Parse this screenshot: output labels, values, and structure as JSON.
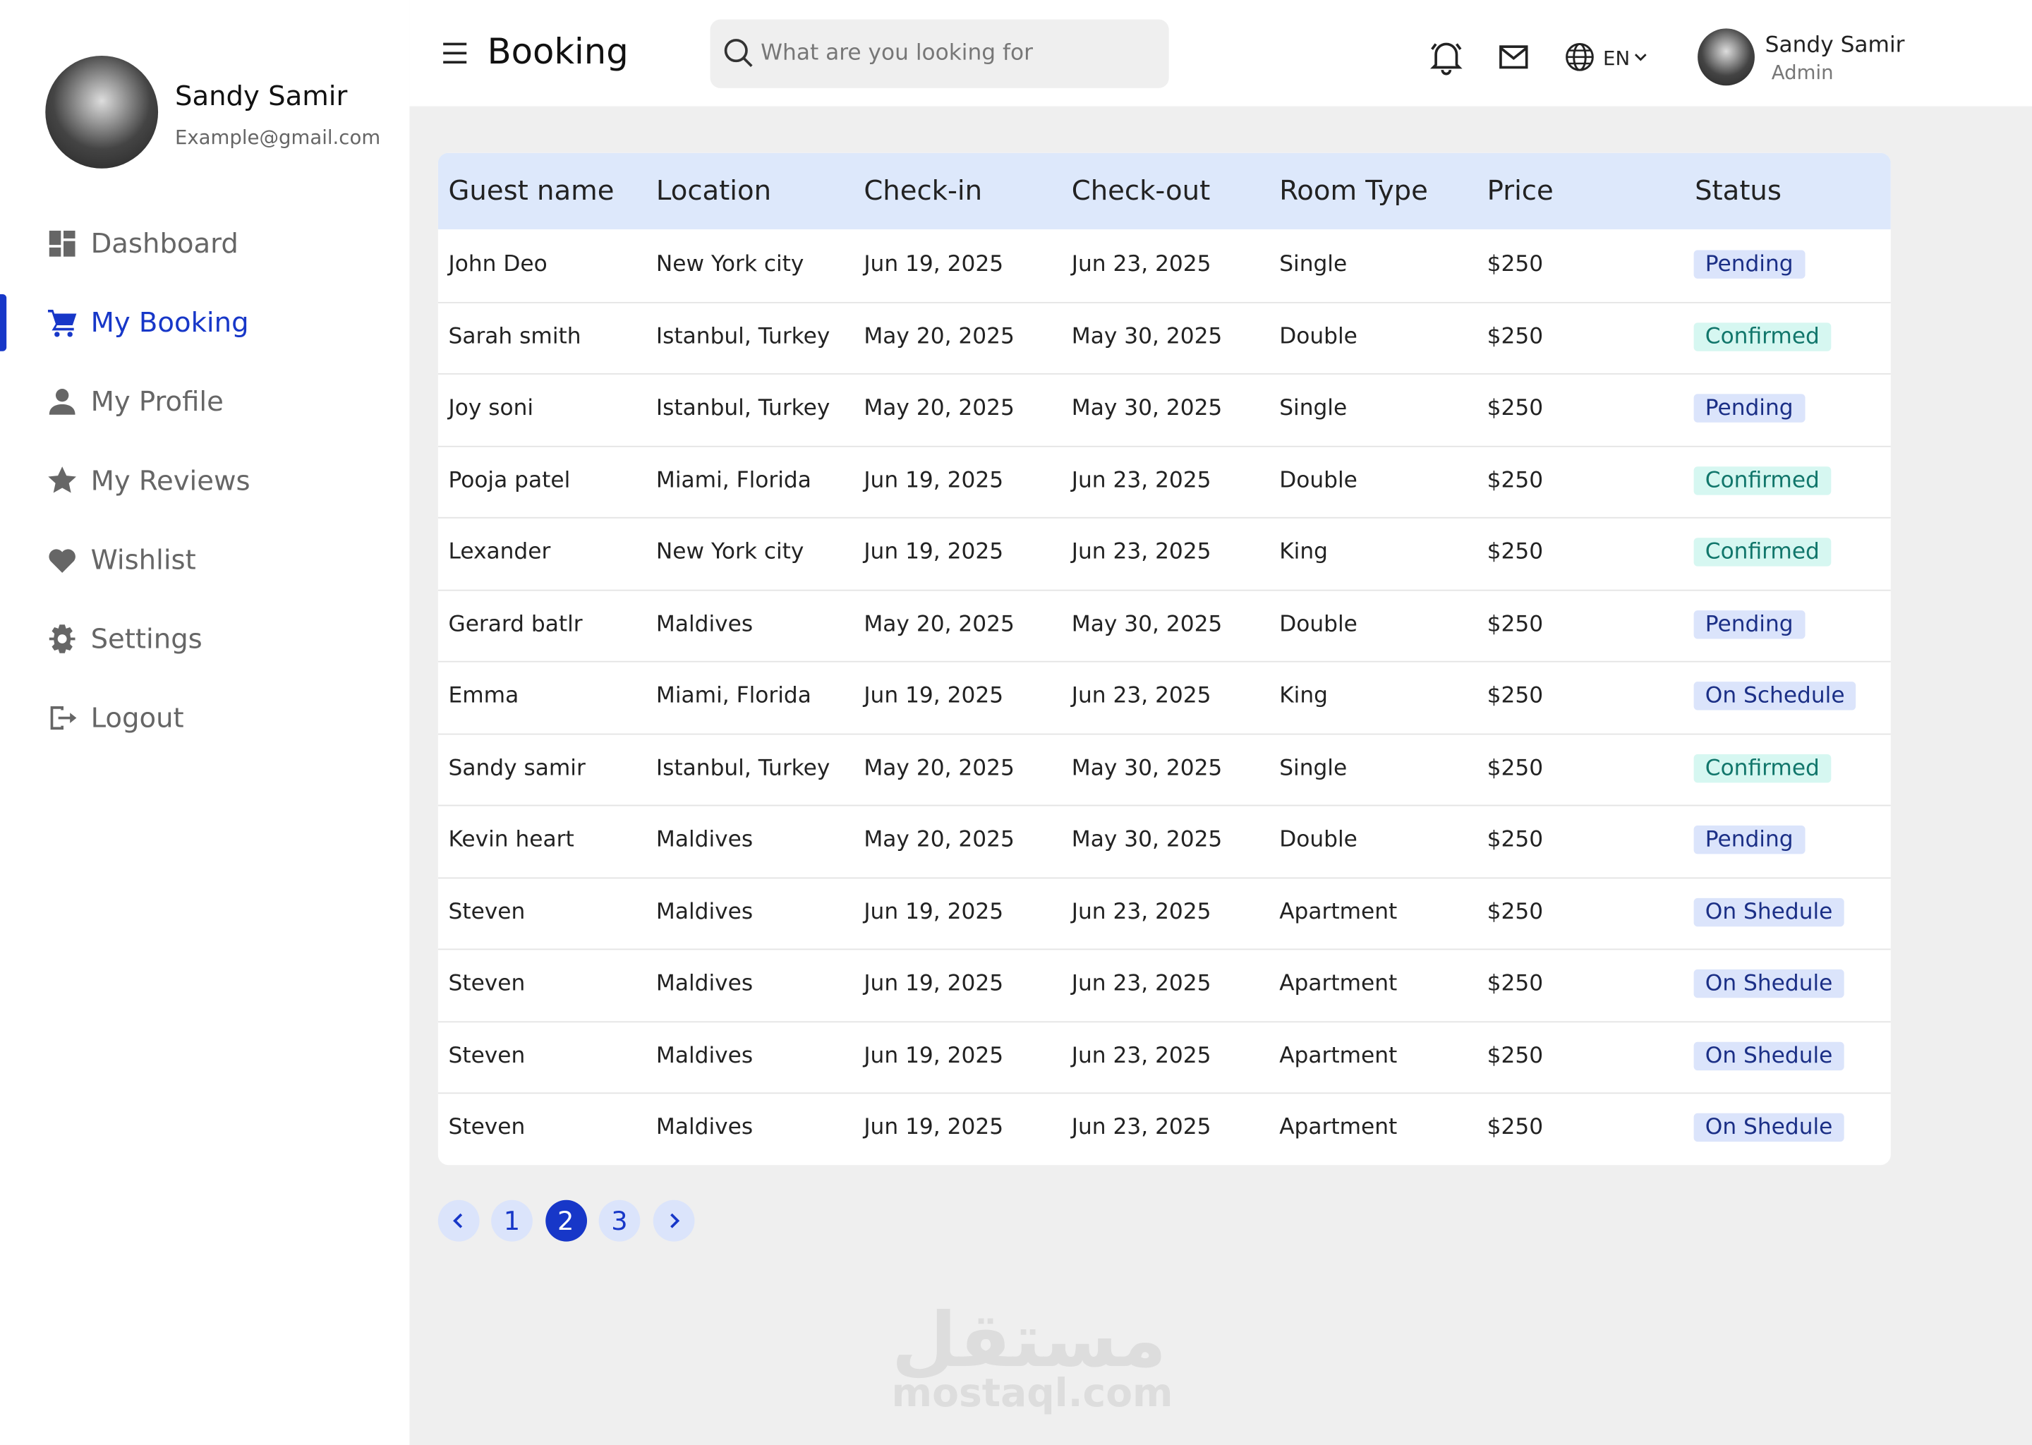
{
  "sidebar": {
    "user": {
      "name": "Sandy Samir",
      "email": "Example@gmail.com"
    },
    "nav": [
      "Dashboard",
      "My Booking",
      "My Profile",
      "My Reviews",
      "Wishlist",
      "Settings",
      "Logout"
    ],
    "active": 1
  },
  "header": {
    "title": "Booking",
    "search_placeholder": "What are you looking for",
    "language": "EN",
    "user": {
      "name": "Sandy Samir",
      "role": "Admin"
    }
  },
  "table": {
    "columns": [
      "Guest name",
      "Location",
      "Check-in",
      "Check-out",
      "Room Type",
      "Price",
      "Status"
    ],
    "rows": [
      [
        "John Deo",
        "New York city",
        "Jun 19, 2025",
        "Jun 23, 2025",
        "Single",
        "$250",
        "Pending"
      ],
      [
        "Sarah smith",
        "Istanbul, Turkey",
        "May 20, 2025",
        "May 30, 2025",
        "Double",
        "$250",
        "Confirmed"
      ],
      [
        "Joy soni",
        "Istanbul, Turkey",
        "May 20, 2025",
        "May 30, 2025",
        "Single",
        "$250",
        "Pending"
      ],
      [
        "Pooja patel",
        "Miami, Florida",
        "Jun 19, 2025",
        "Jun 23, 2025",
        "Double",
        "$250",
        "Confirmed"
      ],
      [
        "Lexander",
        "New York city",
        "Jun 19, 2025",
        "Jun 23, 2025",
        "King",
        "$250",
        "Confirmed"
      ],
      [
        "Gerard batlr",
        "Maldives",
        "May 20, 2025",
        "May 30, 2025",
        "Double",
        "$250",
        "Pending"
      ],
      [
        "Emma",
        "Miami, Florida",
        "Jun 19, 2025",
        "Jun 23, 2025",
        "King",
        "$250",
        "On Schedule"
      ],
      [
        "Sandy samir",
        "Istanbul, Turkey",
        "May 20, 2025",
        "May 30, 2025",
        "Single",
        "$250",
        "Confirmed"
      ],
      [
        "Kevin heart",
        "Maldives",
        "May 20, 2025",
        "May 30, 2025",
        "Double",
        "$250",
        "Pending"
      ],
      [
        "Steven",
        "Maldives",
        "Jun 19, 2025",
        "Jun 23, 2025",
        "Apartment",
        "$250",
        "On Shedule"
      ],
      [
        "Steven",
        "Maldives",
        "Jun 19, 2025",
        "Jun 23, 2025",
        "Apartment",
        "$250",
        "On Shedule"
      ],
      [
        "Steven",
        "Maldives",
        "Jun 19, 2025",
        "Jun 23, 2025",
        "Apartment",
        "$250",
        "On Shedule"
      ],
      [
        "Steven",
        "Maldives",
        "Jun 19, 2025",
        "Jun 23, 2025",
        "Apartment",
        "$250",
        "On Shedule"
      ]
    ],
    "status_styles": {
      "Pending": {
        "bg": "#dbe4fb",
        "fg": "#1b2f86"
      },
      "Confirmed": {
        "bg": "#d6f7f1",
        "fg": "#11766b"
      },
      "On Schedule": {
        "bg": "#dbe4fb",
        "fg": "#1b2f86"
      },
      "On Shedule": {
        "bg": "#dbe4fb",
        "fg": "#1b2f86"
      }
    }
  },
  "pagination": {
    "pages": [
      "1",
      "2",
      "3"
    ],
    "current": 1
  },
  "watermark": {
    "logo": "مستقل",
    "site": "mostaql.com"
  }
}
